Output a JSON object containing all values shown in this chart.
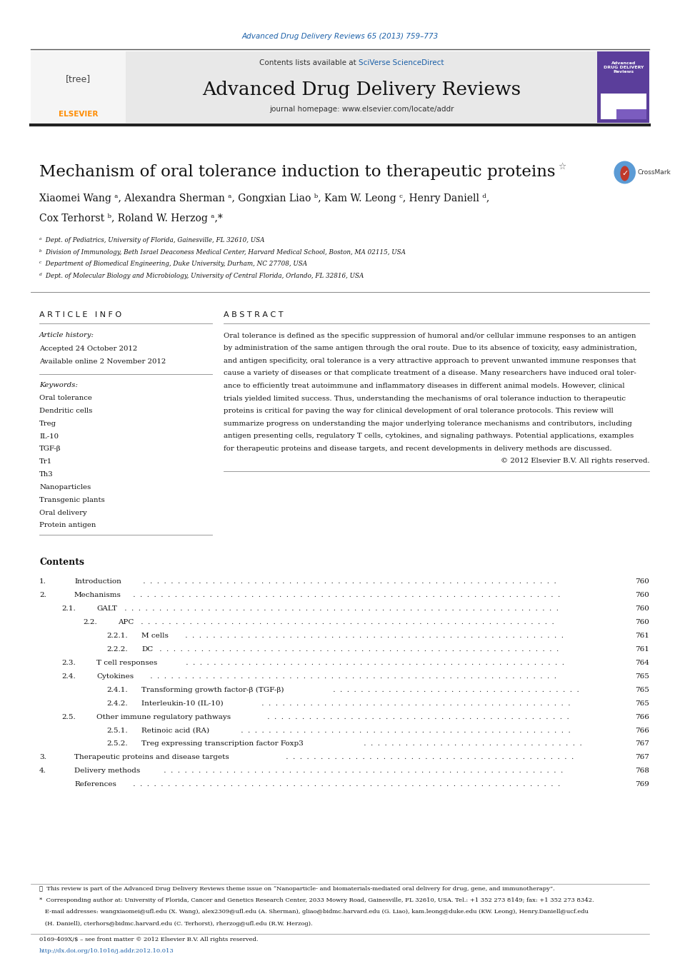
{
  "page_width": 9.92,
  "page_height": 13.23,
  "bg_color": "#ffffff",
  "journal_ref_text": "Advanced Drug Delivery Reviews 65 (2013) 759–773",
  "journal_ref_color": "#1a5fa8",
  "header_bg": "#e8e8e8",
  "header_text": "Advanced Drug Delivery Reviews",
  "contents_text": "Contents lists available at",
  "sciverse_text": "SciVerse ScienceDirect",
  "sciverse_color": "#1a5fa8",
  "journal_home_text": "journal homepage: www.elsevier.com/locate/addr",
  "article_title": "Mechanism of oral tolerance induction to therapeutic proteins",
  "affiliations": [
    "ᵃ  Dept. of Pediatrics, University of Florida, Gainesville, FL 32610, USA",
    "ᵇ  Division of Immunology, Beth Israel Deaconess Medical Center, Harvard Medical School, Boston, MA 02115, USA",
    "ᶜ  Department of Biomedical Engineering, Duke University, Durham, NC 27708, USA",
    "ᵈ  Dept. of Molecular Biology and Microbiology, University of Central Florida, Orlando, FL 32816, USA"
  ],
  "article_info_title": "A R T I C L E   I N F O",
  "article_history_label": "Article history:",
  "article_history_lines": [
    "Accepted 24 October 2012",
    "Available online 2 November 2012"
  ],
  "keywords_label": "Keywords:",
  "keywords": [
    "Oral tolerance",
    "Dendritic cells",
    "Treg",
    "IL-10",
    "TGF-β",
    "Tr1",
    "Th3",
    "Nanoparticles",
    "Transgenic plants",
    "Oral delivery",
    "Protein antigen"
  ],
  "abstract_title": "A B S T R A C T",
  "copyright_text": "© 2012 Elsevier B.V. All rights reserved.",
  "contents_section_title": "Contents",
  "toc_entries": [
    [
      "1.",
      "Introduction",
      "760",
      0
    ],
    [
      "2.",
      "Mechanisms",
      "760",
      0
    ],
    [
      "2.1.",
      "GALT",
      "760",
      1
    ],
    [
      "2.2.",
      "APC",
      "760",
      1
    ],
    [
      "2.2.1.",
      "M cells",
      "761",
      2
    ],
    [
      "2.2.2.",
      "DC",
      "761",
      2
    ],
    [
      "2.3.",
      "T cell responses",
      "764",
      1
    ],
    [
      "2.4.",
      "Cytokines",
      "765",
      1
    ],
    [
      "2.4.1.",
      "Transforming growth factor-β (TGF-β)",
      "765",
      2
    ],
    [
      "2.4.2.",
      "Interleukin-10 (IL-10)",
      "765",
      2
    ],
    [
      "2.5.",
      "Other immune regulatory pathways",
      "766",
      1
    ],
    [
      "2.5.1.",
      "Retinoic acid (RA)",
      "766",
      2
    ],
    [
      "2.5.2.",
      "Treg expressing transcription factor Foxp3",
      "767",
      2
    ],
    [
      "3.",
      "Therapeutic proteins and disease targets",
      "767",
      0
    ],
    [
      "4.",
      "Delivery methods",
      "768",
      0
    ],
    [
      "",
      "References",
      "769",
      0
    ]
  ],
  "footnote1": "☆  This review is part of the Advanced Drug Delivery Reviews theme issue on “Nanoparticle- and biomaterials-mediated oral delivery for drug, gene, and immunotherapy”.",
  "footnote2": "*  Corresponding author at: University of Florida, Cancer and Genetics Research Center, 2033 Mowry Road, Gainesville, FL 32610, USA. Tel.: +1 352 273 8149; fax: +1 352 273 8342.",
  "footnote3": "   E-mail addresses: wangxiaomei@ufl.edu (X. Wang), alex2309@ufl.edu (A. Sherman), gliao@bidmc.harvard.edu (G. Liao), kam.leong@duke.edu (KW. Leong), Henry.Daniell@ucf.edu",
  "footnote4": "   (H. Daniell), cterhors@bidmc.harvard.edu (C. Terhorst), rherzog@ufl.edu (R.W. Herzog).",
  "issn_text": "0169-409X/$ – see front matter © 2012 Elsevier B.V. All rights reserved.",
  "doi_text": "http://dx.doi.org/10.1016/j.addr.2012.10.013",
  "doi_color": "#1a5fa8",
  "abstract_lines": [
    "Oral tolerance is defined as the specific suppression of humoral and/or cellular immune responses to an antigen",
    "by administration of the same antigen through the oral route. Due to its absence of toxicity, easy administration,",
    "and antigen specificity, oral tolerance is a very attractive approach to prevent unwanted immune responses that",
    "cause a variety of diseases or that complicate treatment of a disease. Many researchers have induced oral toler-",
    "ance to efficiently treat autoimmune and inflammatory diseases in different animal models. However, clinical",
    "trials yielded limited success. Thus, understanding the mechanisms of oral tolerance induction to therapeutic",
    "proteins is critical for paving the way for clinical development of oral tolerance protocols. This review will",
    "summarize progress on understanding the major underlying tolerance mechanisms and contributors, including",
    "antigen presenting cells, regulatory T cells, cytokines, and signaling pathways. Potential applications, examples",
    "for therapeutic proteins and disease targets, and recent developments in delivery methods are discussed."
  ]
}
